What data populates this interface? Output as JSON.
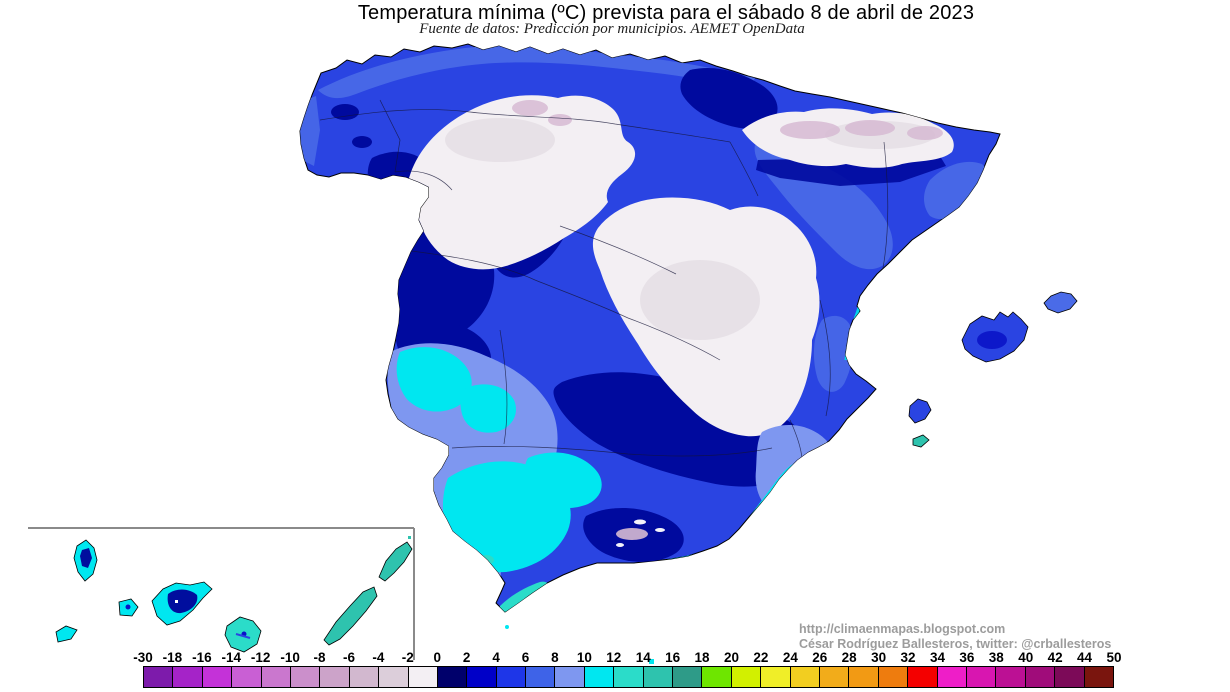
{
  "title": "Temperatura mínima (ºC) prevista para el sábado 8 de abril de 2023",
  "subtitle": "Fuente de datos: Predicción por municipios. AEMET OpenData",
  "credits": {
    "url": "http://climaenmapas.blogspot.com",
    "author": "César Rodríguez Ballesteros, twitter: @crballesteros"
  },
  "legend": {
    "tick_labels": [
      "-30",
      "-18",
      "-16",
      "-14",
      "-12",
      "-10",
      "-8",
      "-6",
      "-4",
      "-2",
      "0",
      "2",
      "4",
      "6",
      "8",
      "10",
      "12",
      "14",
      "16",
      "18",
      "20",
      "22",
      "24",
      "26",
      "28",
      "30",
      "32",
      "34",
      "36",
      "38",
      "40",
      "42",
      "44",
      "50"
    ],
    "cell_colors": [
      "#7D1BAB",
      "#A523C8",
      "#C432D8",
      "#C95FD4",
      "#CA77CE",
      "#CB8FCB",
      "#CCA3C9",
      "#D2B8CF",
      "#DCCEDA",
      "#F3EFF3",
      "#00006B",
      "#0000C8",
      "#1E36E8",
      "#3E63E8",
      "#7E97F0",
      "#00E7F0",
      "#2BDCC9",
      "#2EC3AE",
      "#2E9B88",
      "#6EE600",
      "#D2F000",
      "#F0EE28",
      "#F2CE20",
      "#F2AC1A",
      "#F29A14",
      "#EE7C0E",
      "#F40000",
      "#EE1EC8",
      "#D816B0",
      "#BC1094",
      "#A00C7A",
      "#7C0A58",
      "#7A150E"
    ]
  },
  "palette": {
    "base_royal": "#2A44E2",
    "blue_dark": "#000A9E",
    "blue_darker": "#0A14C8",
    "blue_medium": "#4A6BE8",
    "periwinkle": "#7E97F0",
    "cyan": "#00E7F0",
    "turquoise": "#2BDCC9",
    "teal": "#2EC3AE",
    "white_zone": "#F3EFF3",
    "gray_zone": "#E4DDE3",
    "pink_zone": "#D6BAD2",
    "island_navy": "#000E9E",
    "coast_outline": "#000000",
    "border_line": "#141436",
    "inset_frame": "#8A8A8A"
  }
}
